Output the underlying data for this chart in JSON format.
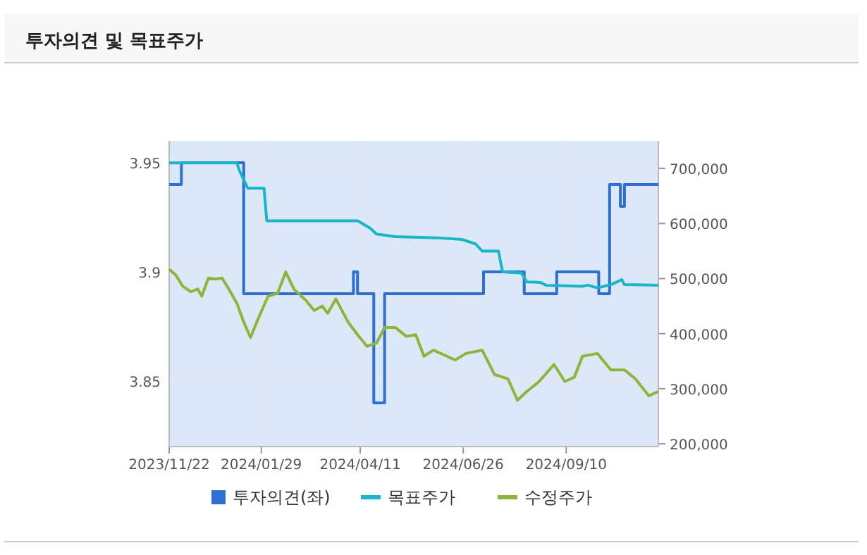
{
  "chart_data": {
    "type": "line",
    "title": "투자의견 및 목표주가",
    "xlim": [
      "2023-11-22",
      "2024-11-17"
    ],
    "xticks": [
      {
        "value": "2023-11-22",
        "label": "2023/11/22"
      },
      {
        "value": "2024-01-29",
        "label": "2024/01/29"
      },
      {
        "value": "2024-04-11",
        "label": "2024/04/11"
      },
      {
        "value": "2024-06-26",
        "label": "2024/06/26"
      },
      {
        "value": "2024-09-10",
        "label": "2024/09/10"
      }
    ],
    "ylim": [
      3.82,
      3.96
    ],
    "yticks": [
      3.85,
      3.9,
      3.95
    ],
    "y2lim": [
      195000,
      750000
    ],
    "y2ticks": [
      {
        "value": 200000,
        "label": "200,000"
      },
      {
        "value": 300000,
        "label": "300,000"
      },
      {
        "value": 400000,
        "label": "400,000"
      },
      {
        "value": 500000,
        "label": "500,000"
      },
      {
        "value": 600000,
        "label": "600,000"
      },
      {
        "value": 700000,
        "label": "700,000"
      }
    ],
    "grid": true,
    "legend": "bottom",
    "series": [
      {
        "name": "투자의견(좌)",
        "type": "step",
        "color": "#2e6fd0",
        "x": [
          "2023-11-22",
          "2023-12-01",
          "2024-01-16",
          "2024-04-06",
          "2024-04-09",
          "2024-04-21",
          "2024-04-29",
          "2024-07-11",
          "2024-08-10",
          "2024-09-03",
          "2024-10-04",
          "2024-10-12",
          "2024-10-20",
          "2024-10-23",
          "2024-11-17"
        ],
        "values": [
          3.94,
          3.95,
          3.89,
          3.9,
          3.89,
          3.84,
          3.89,
          3.9,
          3.89,
          3.9,
          3.89,
          3.94,
          3.93,
          3.94,
          3.94
        ]
      },
      {
        "name": "목표주가",
        "type": "line",
        "axis": "y2",
        "color": "#1ab6c8",
        "x": [
          "2023-11-22",
          "2024-01-11",
          "2024-01-13",
          "2024-01-19",
          "2024-01-31",
          "2024-02-02",
          "2024-04-09",
          "2024-04-18",
          "2024-04-23",
          "2024-05-07",
          "2024-06-07",
          "2024-06-25",
          "2024-07-05",
          "2024-07-10",
          "2024-07-22",
          "2024-07-25",
          "2024-08-08",
          "2024-08-12",
          "2024-08-22",
          "2024-08-26",
          "2024-09-22",
          "2024-09-26",
          "2024-10-03",
          "2024-10-13",
          "2024-10-21",
          "2024-10-23",
          "2024-11-17"
        ],
        "values": [
          710000,
          710000,
          695000,
          664000,
          664000,
          605000,
          605000,
          592000,
          581000,
          576000,
          574000,
          571000,
          563000,
          550000,
          550000,
          512000,
          510000,
          494000,
          493000,
          488000,
          486000,
          488000,
          483000,
          489000,
          498000,
          489000,
          488000
        ]
      },
      {
        "name": "수정주가",
        "type": "line",
        "axis": "y2",
        "color": "#8db53c",
        "x": [
          "2023-11-22",
          "2023-11-27",
          "2023-12-02",
          "2023-12-08",
          "2023-12-13",
          "2023-12-16",
          "2023-12-21",
          "2023-12-26",
          "2023-12-31",
          "2024-01-05",
          "2024-01-11",
          "2024-01-16",
          "2024-01-21",
          "2024-01-27",
          "2024-02-03",
          "2024-02-10",
          "2024-02-16",
          "2024-02-22",
          "2024-03-02",
          "2024-03-08",
          "2024-03-14",
          "2024-03-18",
          "2024-03-24",
          "2024-04-02",
          "2024-04-09",
          "2024-04-16",
          "2024-04-23",
          "2024-04-29",
          "2024-05-07",
          "2024-05-15",
          "2024-05-22",
          "2024-05-28",
          "2024-06-04",
          "2024-06-14",
          "2024-06-20",
          "2024-06-28",
          "2024-07-10",
          "2024-07-19",
          "2024-07-29",
          "2024-08-05",
          "2024-08-12",
          "2024-08-21",
          "2024-09-01",
          "2024-09-09",
          "2024-09-16",
          "2024-09-22",
          "2024-10-03",
          "2024-10-13",
          "2024-10-23",
          "2024-10-31",
          "2024-11-10",
          "2024-11-17"
        ],
        "values": [
          517000,
          506000,
          486000,
          476000,
          481000,
          468000,
          501000,
          499000,
          501000,
          481000,
          455000,
          421000,
          393000,
          429000,
          468000,
          473000,
          512000,
          481000,
          460000,
          442000,
          450000,
          437000,
          463000,
          421000,
          398000,
          377000,
          383000,
          411000,
          411000,
          395000,
          398000,
          359000,
          370000,
          359000,
          352000,
          364000,
          370000,
          326000,
          318000,
          279000,
          295000,
          313000,
          344000,
          313000,
          321000,
          359000,
          364000,
          334000,
          334000,
          318000,
          287000,
          295000
        ]
      }
    ]
  }
}
